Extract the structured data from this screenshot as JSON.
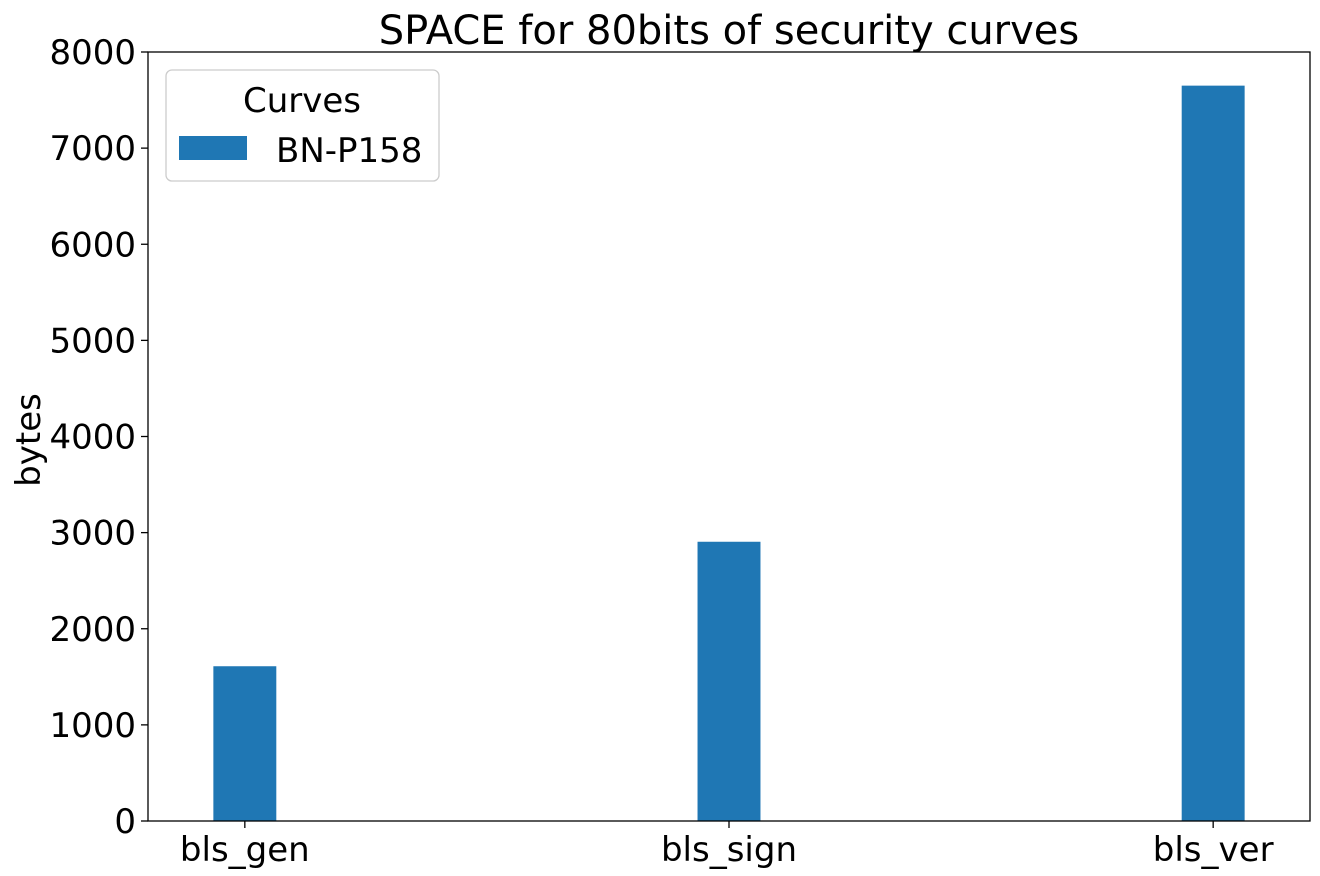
{
  "chart_data": {
    "type": "bar",
    "title": "SPACE for 80bits of security curves",
    "xlabel": "",
    "ylabel": "bytes",
    "categories": [
      "bls_gen",
      "bls_sign",
      "bls_ver"
    ],
    "series": [
      {
        "name": "BN-P158",
        "values": [
          1610,
          2905,
          7650
        ],
        "color": "#1f77b4"
      }
    ],
    "ylim": [
      0,
      8000
    ],
    "yticks": [
      0,
      1000,
      2000,
      3000,
      4000,
      5000,
      6000,
      7000,
      8000
    ],
    "grid": false,
    "legend": {
      "title": "Curves",
      "placement": "top-left"
    }
  }
}
